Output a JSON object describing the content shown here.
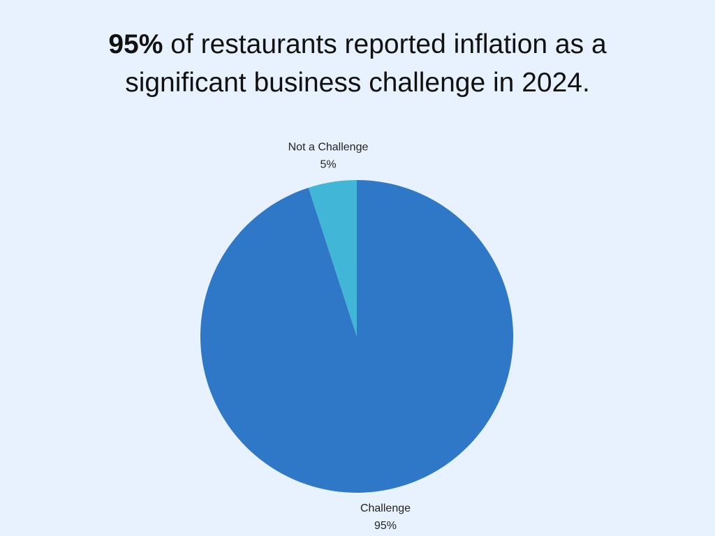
{
  "chart_data": {
    "type": "pie",
    "title_emphasis": "95%",
    "title": "of restaurants reported inflation as a significant business challenge in 2024.",
    "categories": [
      "Challenge",
      "Not a Challenge"
    ],
    "values": [
      95,
      5
    ],
    "value_labels": [
      "95%",
      "5%"
    ],
    "colors": [
      "#2e78c7",
      "#41b6d6"
    ]
  }
}
